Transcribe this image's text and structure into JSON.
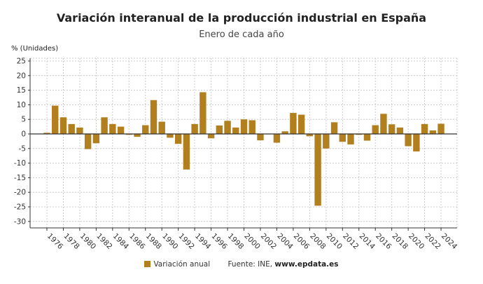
{
  "title": "Variación interanual de la producción industrial en España",
  "subtitle": "Enero de cada año",
  "unit_label": "% (Unidades)",
  "legend": {
    "label": "Variación anual",
    "source_prefix": "Fuente: INE, ",
    "source_site": "www.epdata.es"
  },
  "chart_data": {
    "type": "bar",
    "title": "Variación interanual de la producción industrial en España",
    "subtitle": "Enero de cada año",
    "ylabel": "% (Unidades)",
    "ylim": [
      -32,
      26
    ],
    "yticks": [
      -30,
      -25,
      -20,
      -15,
      -10,
      -5,
      0,
      5,
      10,
      15,
      20,
      25
    ],
    "xtick_labels": [
      "1976",
      "1978",
      "1980",
      "1982",
      "1984",
      "1986",
      "1988",
      "1990",
      "1992",
      "1994",
      "1996",
      "1998",
      "2000",
      "2002",
      "2004",
      "2006",
      "2008",
      "2010",
      "2012",
      "2014",
      "2016",
      "2018",
      "2020",
      "2022",
      "2024"
    ],
    "grid": true,
    "legend_position": "bottom",
    "color": "#b27f1f",
    "series": [
      {
        "name": "Variación anual",
        "categories": [
          1976,
          1977,
          1978,
          1979,
          1980,
          1981,
          1982,
          1983,
          1984,
          1985,
          1986,
          1987,
          1988,
          1989,
          1990,
          1991,
          1992,
          1993,
          1994,
          1995,
          1996,
          1997,
          1998,
          1999,
          2000,
          2001,
          2002,
          2003,
          2004,
          2005,
          2006,
          2007,
          2008,
          2009,
          2010,
          2011,
          2012,
          2013,
          2014,
          2015,
          2016,
          2017,
          2018,
          2019,
          2020,
          2021,
          2022,
          2023,
          2024
        ],
        "values": [
          0.4,
          9.7,
          5.7,
          3.4,
          2.2,
          -5.2,
          -3.2,
          5.7,
          3.4,
          2.5,
          -0.3,
          -1.0,
          3.0,
          11.6,
          4.2,
          -1.3,
          -3.4,
          -12.2,
          3.4,
          14.3,
          -1.5,
          2.9,
          4.5,
          2.2,
          5.0,
          4.7,
          -2.2,
          -0.1,
          -3.0,
          0.9,
          7.2,
          6.6,
          -0.8,
          -24.6,
          -5.0,
          4.0,
          -2.7,
          -3.6,
          -0.3,
          -2.3,
          3.0,
          6.9,
          3.3,
          2.2,
          -4.2,
          -6.0,
          3.4,
          1.2,
          3.5
        ]
      }
    ]
  }
}
